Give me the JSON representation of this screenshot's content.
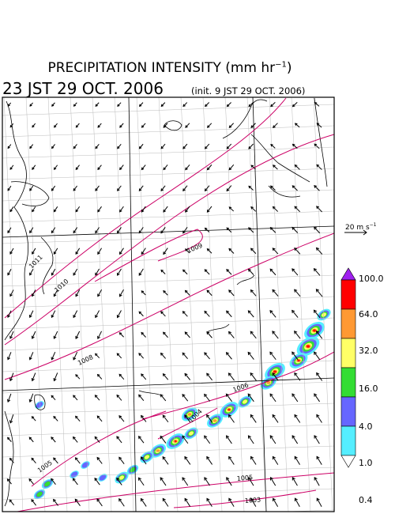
{
  "header": {
    "title_main": "PRECIPITATION INTENSITY (mm hr",
    "title_exp": "−1",
    "title_close": ")",
    "valid_time": "23 JST 29 OCT. 2006",
    "init_note": "(init. 9 JST 29 OCT. 2006)"
  },
  "reference_vector": {
    "label_base": "20 m s",
    "label_exp": "−1"
  },
  "colorbar": {
    "levels": [
      "100.0",
      "64.0",
      "32.0",
      "16.0",
      "4.0",
      "1.0",
      "0.4"
    ],
    "colors": [
      "#a020f0",
      "#ff0000",
      "#ff9933",
      "#ffff66",
      "#33dd33",
      "#6666ff",
      "#55eeff",
      "#ffffff"
    ]
  },
  "isobars": [
    {
      "label": "1011"
    },
    {
      "label": "1010"
    },
    {
      "label": "1009"
    },
    {
      "label": "1008"
    },
    {
      "label": "1006"
    },
    {
      "label": "1005"
    },
    {
      "label": "1004"
    },
    {
      "label": "1005"
    },
    {
      "label": "1003"
    }
  ],
  "colors": {
    "isobar": "#cc0066",
    "grid": "#bbbbbb",
    "frame": "#000000",
    "coast": "#000000"
  }
}
